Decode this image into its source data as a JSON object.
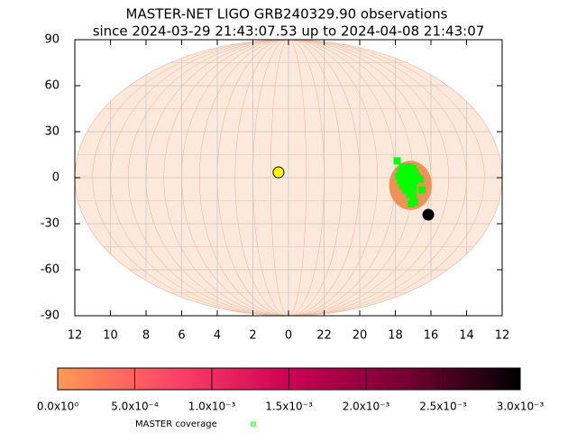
{
  "chart_data": {
    "type": "skymap",
    "title": "MASTER-NET LIGO GRB240329.90 observations",
    "subtitle": "since 2024-03-29 21:43:07.53 up to 2024-04-08 21:43:07",
    "xlim": [
      12,
      -12
    ],
    "xticks": [
      12,
      10,
      8,
      6,
      4,
      2,
      0,
      {
        "value": -2,
        "label": "22"
      },
      {
        "value": -4,
        "label": "20"
      },
      {
        "value": -6,
        "label": "18"
      },
      {
        "value": -8,
        "label": "16"
      },
      {
        "value": -10,
        "label": "14"
      },
      {
        "value": -12,
        "label": "12"
      }
    ],
    "ylim": [
      -90,
      90
    ],
    "yticks": [
      90,
      60,
      30,
      0,
      -30,
      -60,
      -90
    ],
    "grid": true,
    "regions": [
      {
        "x": -6.85,
        "y": -5,
        "rx": 1.2,
        "ry": 16,
        "color": "#ef9158"
      }
    ],
    "series": [
      {
        "name": "MASTER coverage",
        "color": "#00ff00",
        "x": [
          -6.4,
          -6.6,
          -6.8,
          -7.0,
          -6.3,
          -6.5,
          -6.7,
          -6.9,
          -7.1,
          -6.2,
          -6.4,
          -6.6,
          -6.8,
          -7.0,
          -7.2,
          -6.3,
          -6.5,
          -6.7,
          -6.9,
          -7.1,
          -6.4,
          -6.6,
          -6.8,
          -7.0,
          -6.6,
          -6.8,
          -7.0,
          -6.8,
          -7.0,
          -6.9,
          -7.1,
          -7.4,
          -6.1,
          -7.5
        ],
        "y": [
          7,
          7,
          7,
          6,
          4,
          4,
          4,
          4,
          4,
          1,
          1,
          1,
          1,
          1,
          1,
          -2,
          -2,
          -2,
          -2,
          -2,
          -5,
          -5,
          -5,
          -5,
          -8,
          -8,
          -8,
          -11,
          -13,
          -17,
          -16,
          -1,
          11,
          -8
        ]
      }
    ],
    "markers": [
      {
        "x": 0.56,
        "y": 3.5,
        "color": "#ffff00"
      },
      {
        "x": -7.85,
        "y": -24.1,
        "color": "#000000"
      }
    ],
    "colorbar": {
      "lim": [
        0,
        0.003
      ],
      "ticks": [
        {
          "value": 0,
          "label": "0.0x10⁰"
        },
        {
          "value": 0.0005,
          "label": "5.0x10⁻⁴"
        },
        {
          "value": 0.001,
          "label": "1.0x10⁻³"
        },
        {
          "value": 0.0015,
          "label": "1.5x10⁻³"
        },
        {
          "value": 0.002,
          "label": "2.0x10⁻³"
        },
        {
          "value": 0.0025,
          "label": "2.5x10⁻³"
        },
        {
          "value": 0.003,
          "label": "3.0x10⁻³"
        }
      ],
      "colors": [
        "#ff9955",
        "#ff4466",
        "#cc0055",
        "#770033",
        "#000000"
      ]
    }
  }
}
